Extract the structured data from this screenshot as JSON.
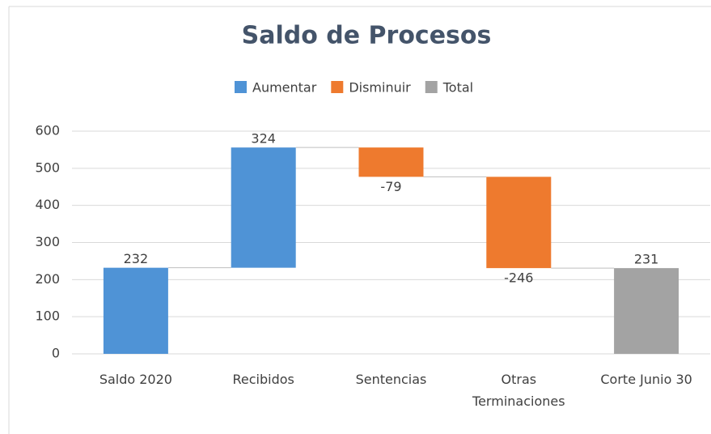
{
  "chart_data": {
    "type": "waterfall",
    "title": "Saldo de Procesos",
    "categories": [
      "Saldo 2020",
      "Recibidos",
      "Sentencias",
      "Otras Terminaciones",
      "Corte Junio 30"
    ],
    "series": [
      {
        "name": "Aumentar",
        "color": "#4f93d6",
        "values": [
          232,
          324,
          null,
          null,
          null
        ]
      },
      {
        "name": "Disminuir",
        "color": "#ee7a2e",
        "values": [
          null,
          null,
          -79,
          -246,
          null
        ]
      },
      {
        "name": "Total",
        "color": "#a3a3a3",
        "values": [
          null,
          null,
          null,
          null,
          231
        ]
      }
    ],
    "ylim": [
      0,
      600
    ],
    "yticks": [
      0,
      100,
      200,
      300,
      400,
      500,
      600
    ],
    "grid": true,
    "legend": "top"
  }
}
